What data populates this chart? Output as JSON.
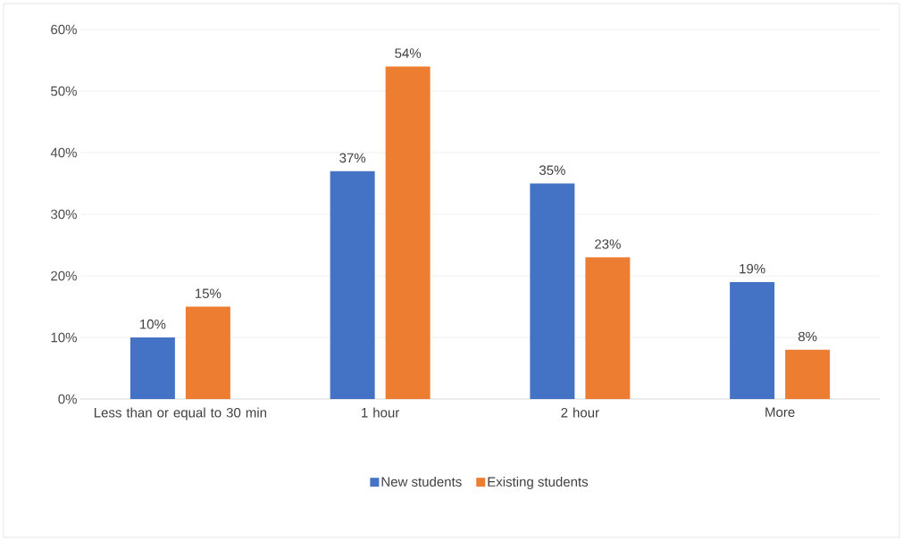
{
  "chart_data": {
    "type": "bar",
    "categories": [
      "Less than or equal to 30 min",
      "1 hour",
      "2 hour",
      "More"
    ],
    "series": [
      {
        "name": "New students",
        "color": "#4472c4",
        "values": [
          10,
          37,
          35,
          19
        ],
        "value_labels": [
          "10%",
          "37%",
          "35%",
          "19%"
        ]
      },
      {
        "name": "Existing students",
        "color": "#ed7d31",
        "values": [
          15,
          54,
          23,
          8
        ],
        "value_labels": [
          "15%",
          "54%",
          "23%",
          "8%"
        ]
      }
    ],
    "ylim": [
      0,
      60
    ],
    "yticks": [
      {
        "value": 0,
        "label": "0%"
      },
      {
        "value": 10,
        "label": "10%"
      },
      {
        "value": 20,
        "label": "20%"
      },
      {
        "value": 30,
        "label": "30%"
      },
      {
        "value": 40,
        "label": "40%"
      },
      {
        "value": 50,
        "label": "50%"
      },
      {
        "value": 60,
        "label": "60%"
      }
    ],
    "grid": "y",
    "legend": "bottom"
  }
}
